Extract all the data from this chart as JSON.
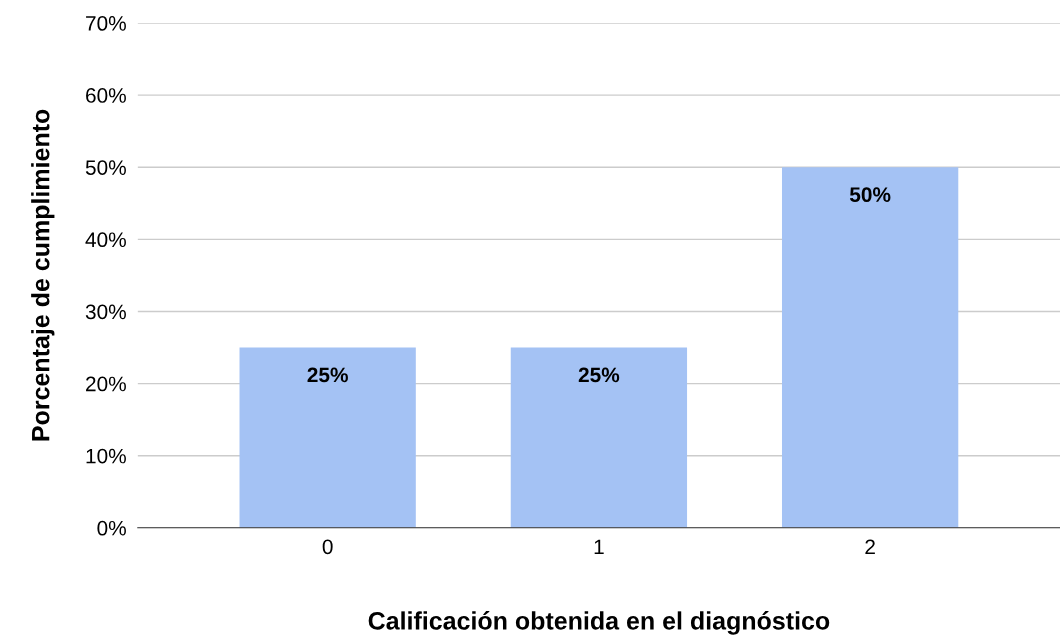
{
  "chart_data": {
    "type": "bar",
    "xlabel": "Calificación obtenida en el diagnóstico",
    "ylabel": "Porcentaje de cumplimiento",
    "categories": [
      "0",
      "1",
      "2"
    ],
    "values": [
      25,
      25,
      50
    ],
    "value_labels": [
      "25%",
      "25%",
      "50%"
    ],
    "color": "#a4c2f4",
    "ylim": [
      0,
      70
    ],
    "yticks": [
      {
        "value": 0,
        "label": "0%"
      },
      {
        "value": 10,
        "label": "10%"
      },
      {
        "value": 20,
        "label": "20%"
      },
      {
        "value": 30,
        "label": "30%"
      },
      {
        "value": 40,
        "label": "40%"
      },
      {
        "value": 50,
        "label": "50%"
      },
      {
        "value": 60,
        "label": "60%"
      },
      {
        "value": 70,
        "label": "70%"
      }
    ],
    "grid": "y",
    "legend": false
  }
}
